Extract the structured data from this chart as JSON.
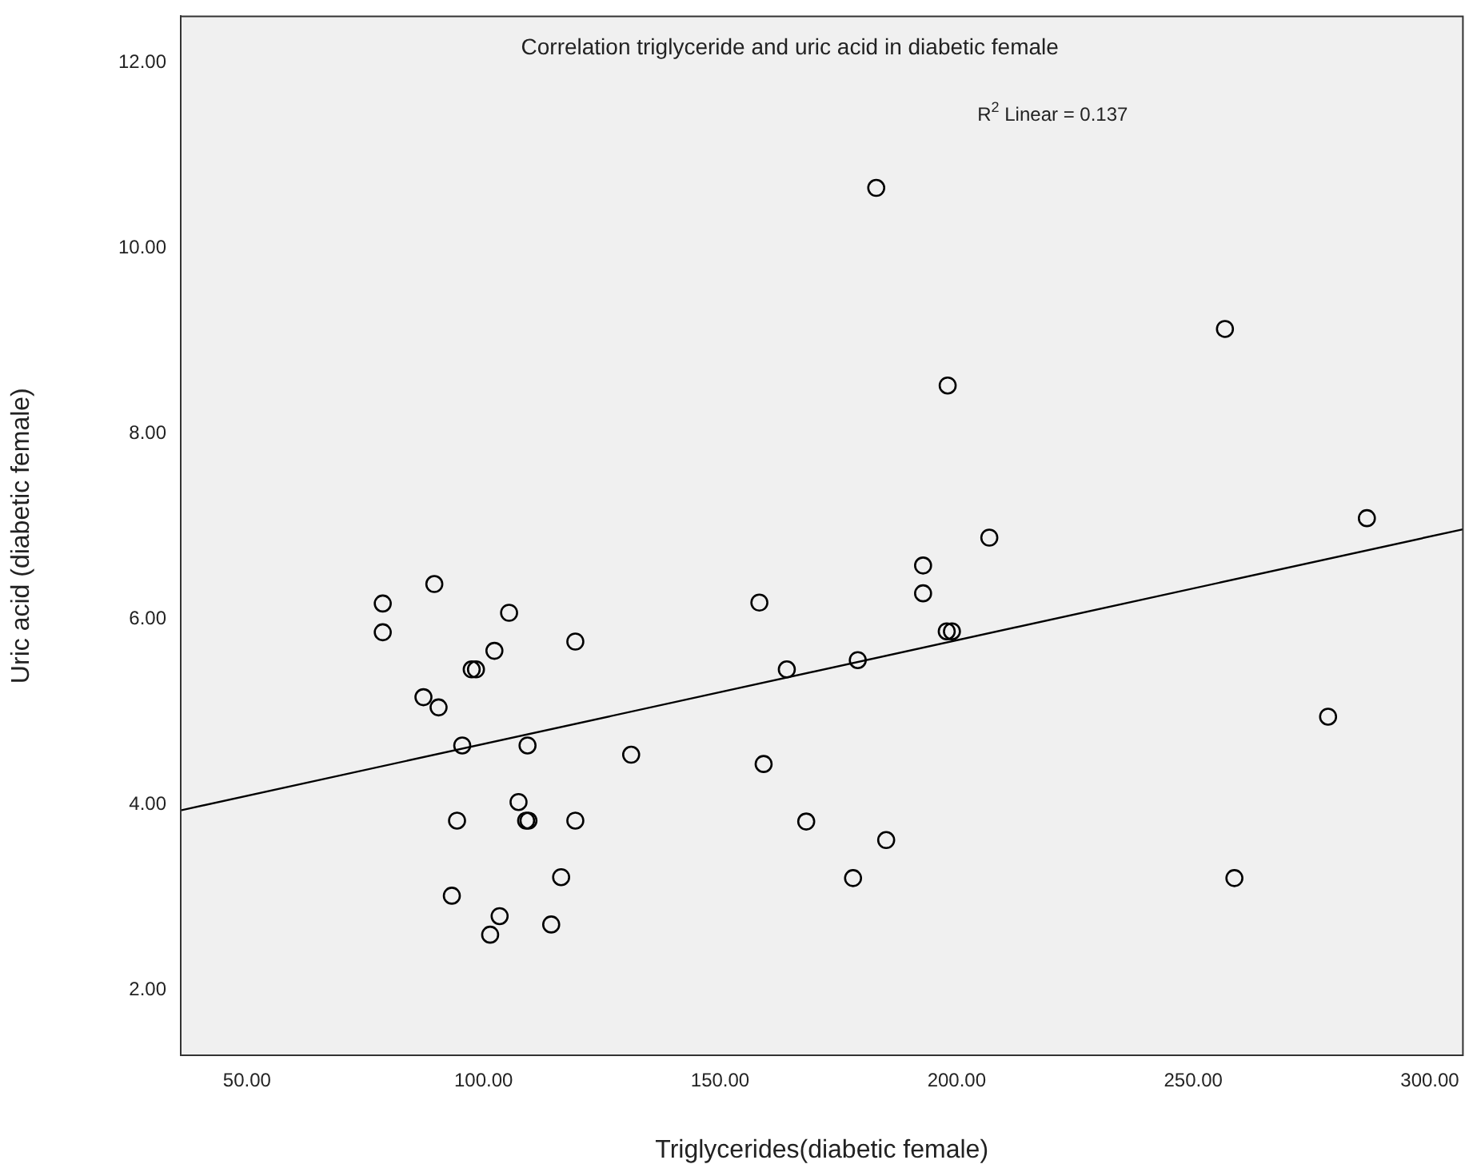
{
  "chart_data": {
    "type": "scatter",
    "title": "Correlation triglyceride and uric acid in diabetic female",
    "xlabel": "Triglycerides(diabetic female)",
    "ylabel": "Uric acid (diabetic female)",
    "annotations": [
      "R$^{2}$ Linear = 0.137"
    ],
    "xlim": [
      36,
      307
    ],
    "ylim": [
      1.3,
      12.5
    ],
    "xticks": [
      {
        "value": 50,
        "label": "50.00"
      },
      {
        "value": 100,
        "label": "100.00"
      },
      {
        "value": 150,
        "label": "150.00"
      },
      {
        "value": 200,
        "label": "200.00"
      },
      {
        "value": 250,
        "label": "250.00"
      },
      {
        "value": 300,
        "label": "300.00"
      }
    ],
    "yticks": [
      {
        "value": 2,
        "label": "2.00"
      },
      {
        "value": 4,
        "label": "4.00"
      },
      {
        "value": 6,
        "label": "6.00"
      },
      {
        "value": 8,
        "label": "8.00"
      },
      {
        "value": 10,
        "label": "10.00"
      },
      {
        "value": 12,
        "label": "12.00"
      }
    ],
    "grid": false,
    "marker": "circle",
    "series": [
      {
        "color": "#000000",
        "x": [
          78.7,
          78.7,
          89.6,
          105.4,
          119.4,
          102.3,
          97.5,
          98.4,
          87.3,
          90.5,
          95.5,
          109.3,
          131.2,
          107.4,
          94.4,
          109.0,
          109.5,
          119.4,
          116.4,
          93.3,
          103.4,
          114.3,
          101.4,
          183.0,
          256.7,
          198.1,
          206.9,
          192.9,
          192.9,
          158.3,
          286.7,
          197.9,
          199.0,
          164.1,
          179.1,
          278.5,
          159.2,
          168.2,
          185.1,
          178.1,
          258.7
        ],
        "values": [
          6.17,
          5.86,
          6.38,
          6.07,
          5.76,
          5.66,
          5.46,
          5.46,
          5.16,
          5.05,
          4.64,
          4.64,
          4.54,
          4.03,
          3.83,
          3.83,
          3.83,
          3.83,
          3.22,
          3.02,
          2.8,
          2.71,
          2.6,
          10.65,
          9.13,
          8.52,
          6.88,
          6.58,
          6.28,
          6.18,
          7.09,
          5.87,
          5.87,
          5.46,
          5.56,
          4.95,
          4.44,
          3.82,
          3.62,
          3.21,
          3.21
        ]
      },
      {
        "type": "line",
        "color": "#000000",
        "marker": "none",
        "x": [
          36,
          307
        ],
        "values": [
          3.94,
          6.97
        ]
      }
    ]
  }
}
